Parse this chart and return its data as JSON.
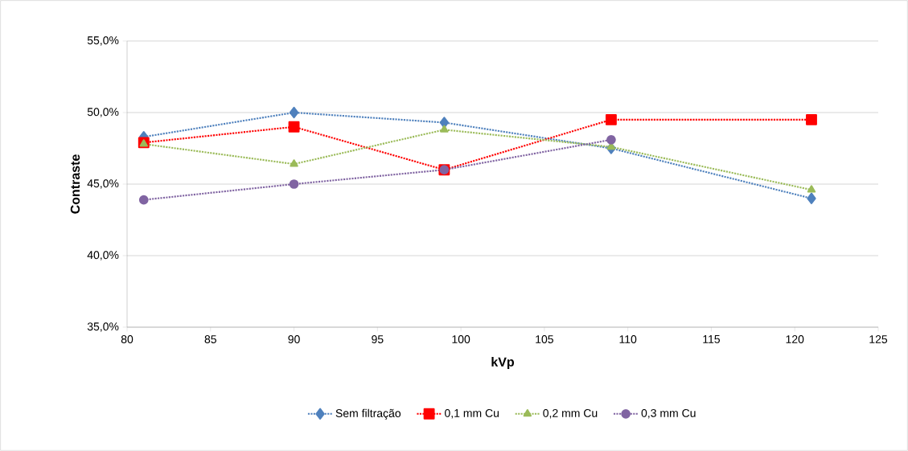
{
  "chart_data": {
    "type": "line",
    "xlabel": "kVp",
    "ylabel": "Contraste",
    "x": [
      81,
      90,
      99,
      109,
      121
    ],
    "xlim": [
      80,
      125
    ],
    "xticks": [
      80,
      85,
      90,
      95,
      100,
      105,
      110,
      115,
      120,
      125
    ],
    "ylim": [
      35,
      55
    ],
    "yticks": [
      {
        "value": 35,
        "label": "35,0%"
      },
      {
        "value": 40,
        "label": "40,0%"
      },
      {
        "value": 45,
        "label": "45,0%"
      },
      {
        "value": 50,
        "label": "50,0%"
      },
      {
        "value": 55,
        "label": "55,0%"
      }
    ],
    "grid": "y",
    "legend": "bottom",
    "line_style": "dotted",
    "series": [
      {
        "name": "Sem filtração",
        "color": "#4f81bd",
        "marker": "diamond",
        "values": [
          48.3,
          50.0,
          49.3,
          47.5,
          44.0
        ]
      },
      {
        "name": "0,1 mm Cu",
        "color": "#ff0000",
        "marker": "square",
        "values": [
          47.9,
          49.0,
          46.0,
          49.5,
          49.5
        ]
      },
      {
        "name": "0,2 mm Cu",
        "color": "#9bbb59",
        "marker": "triangle",
        "values": [
          47.8,
          46.4,
          48.8,
          47.6,
          44.6
        ]
      },
      {
        "name": "0,3 mm Cu",
        "color": "#8064a2",
        "marker": "circle",
        "values": [
          43.9,
          45.0,
          46.0,
          48.1,
          null
        ]
      }
    ]
  }
}
